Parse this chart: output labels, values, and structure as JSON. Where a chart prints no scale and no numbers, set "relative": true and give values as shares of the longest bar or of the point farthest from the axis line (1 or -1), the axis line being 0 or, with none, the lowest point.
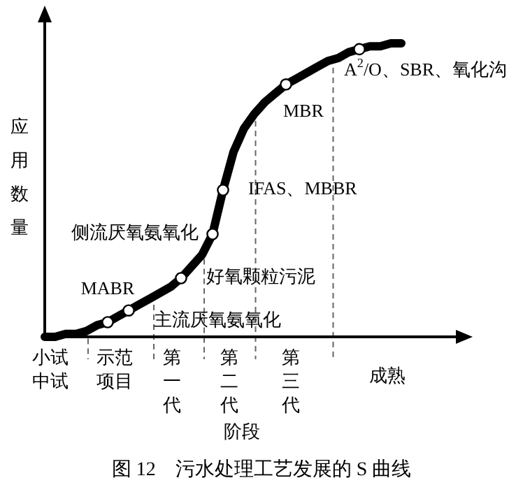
{
  "chart_data": {
    "type": "line",
    "relative": true,
    "title": "图 12　污水处理工艺发展的 S 曲线",
    "xlabel": "阶段",
    "ylabel": "应用数量",
    "categories": [
      null,
      null,
      null,
      null,
      null,
      null,
      null,
      null,
      null,
      null,
      null,
      null,
      null,
      null,
      null,
      null,
      null,
      null,
      null,
      null,
      null,
      null,
      null,
      null,
      null,
      null,
      null,
      null,
      null,
      null,
      null,
      null,
      null,
      null,
      null
    ],
    "series": [
      {
        "color": "#000000",
        "values": [
          0,
          0.0,
          0.01,
          0.01,
          0.02,
          0.04,
          0.05,
          0.07,
          0.09,
          0.11,
          0.13,
          0.15,
          0.17,
          0.2,
          0.24,
          0.28,
          0.35,
          0.5,
          0.63,
          0.71,
          0.76,
          0.8,
          0.83,
          0.86,
          0.88,
          0.9,
          0.92,
          0.94,
          0.95,
          0.97,
          0.98,
          0.99,
          0.99,
          1.0,
          1
        ]
      }
    ],
    "annotations": [
      "MABR",
      "主流厌氧氨氧化",
      "好氧颗粒污泥",
      "侧流厌氧氨氧化",
      "IFAS、MBBR",
      "MBR",
      "A$^{2}$/O、SBR、氧化沟",
      "小试中试",
      "示范项目",
      "第一代",
      "第二代",
      "第三代",
      "成熟"
    ]
  }
}
